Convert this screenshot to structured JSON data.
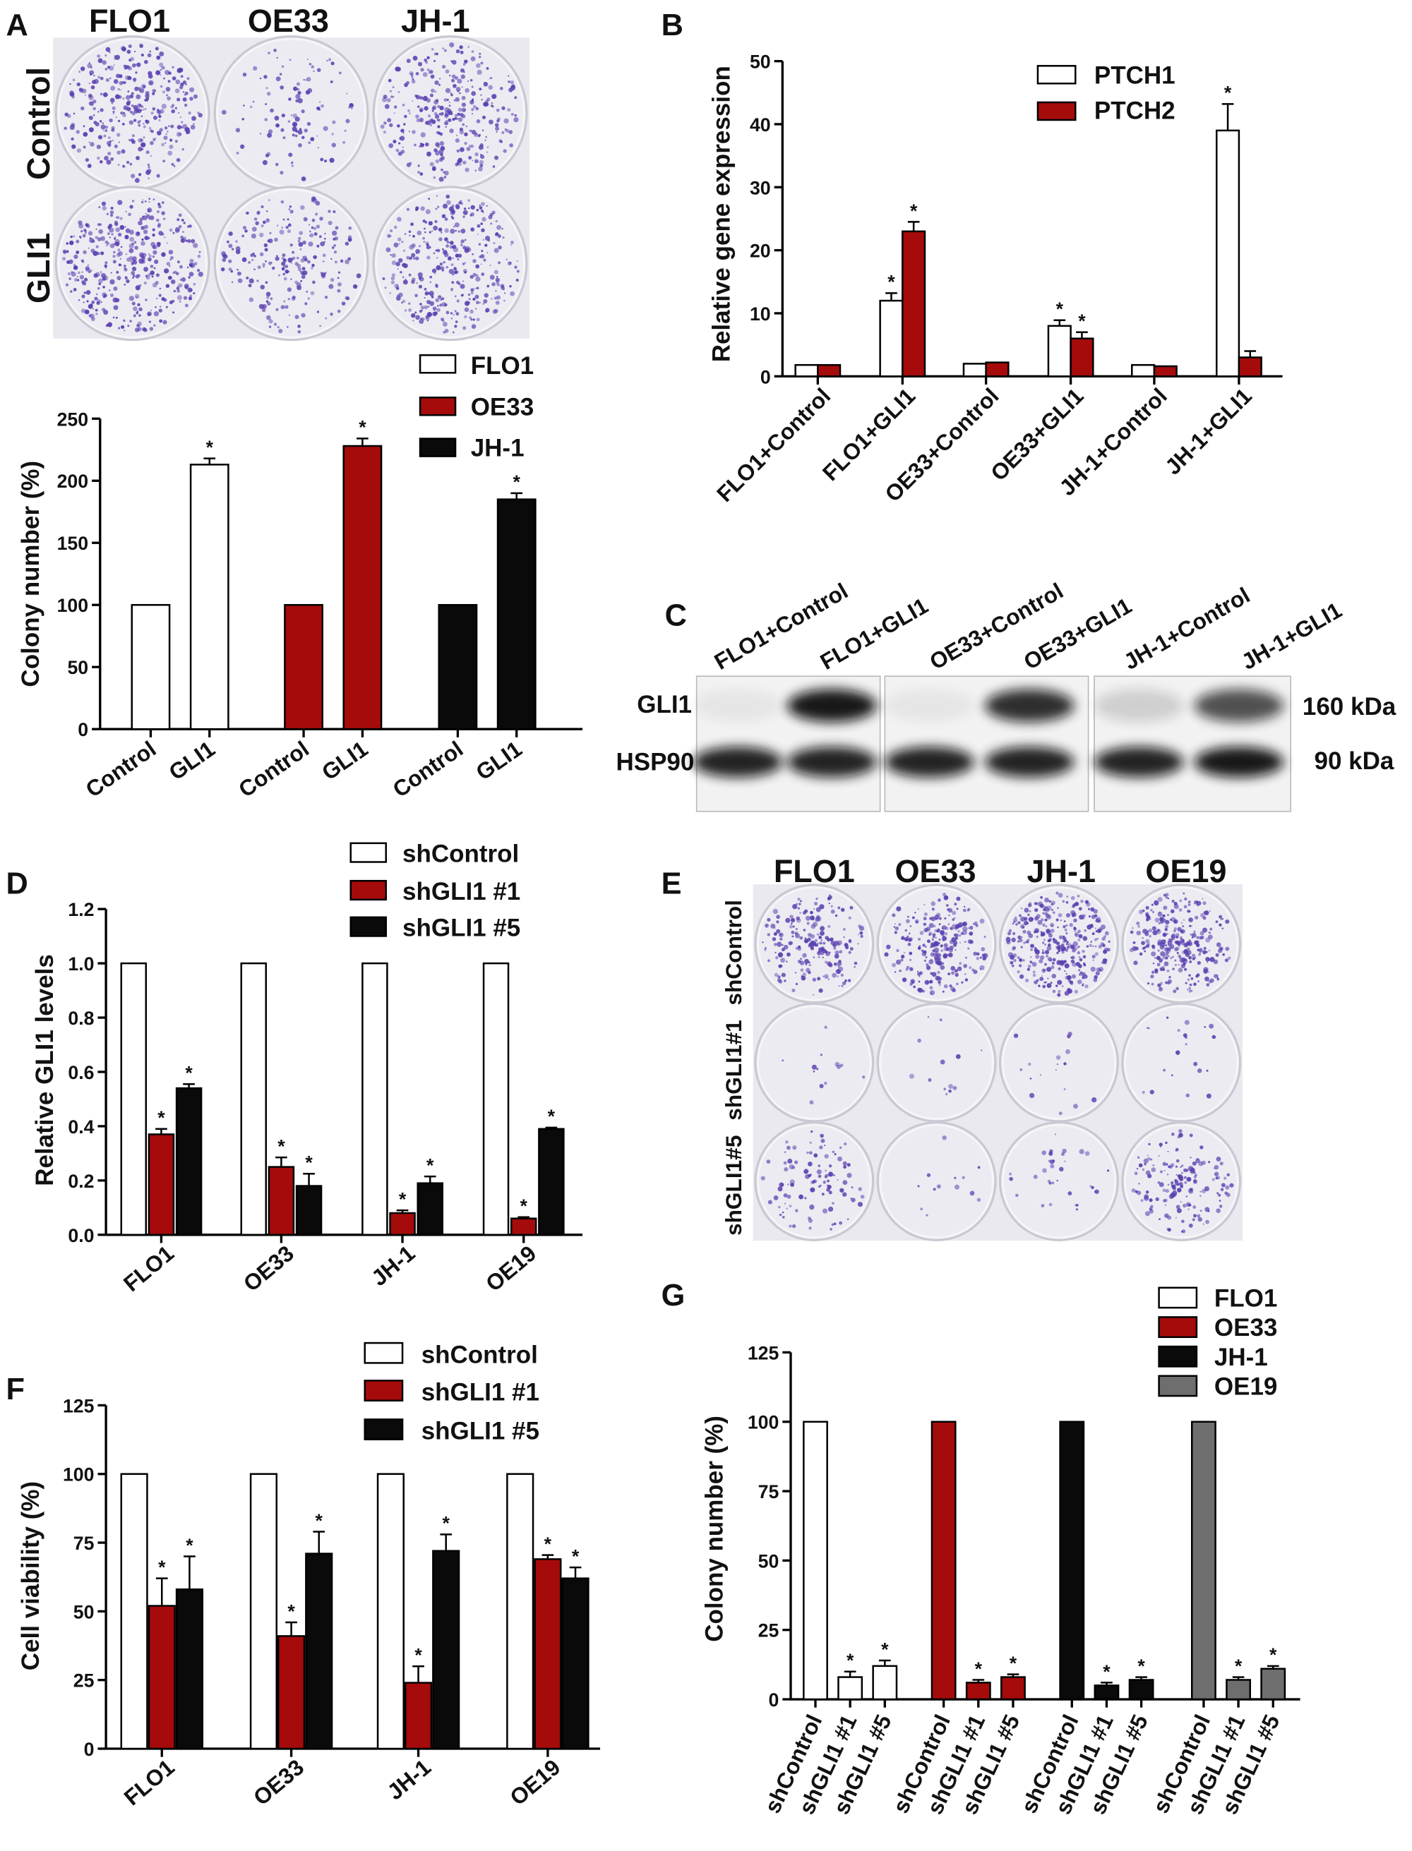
{
  "panels": {
    "A": "A",
    "B": "B",
    "C": "C",
    "D": "D",
    "E": "E",
    "F": "F",
    "G": "G"
  },
  "colors": {
    "white": "#ffffff",
    "red": "#a50b0b",
    "black": "#0a0a0a",
    "gray": "#6e6e6e",
    "stain": "#5a3fb0"
  },
  "photoA": {
    "columns": [
      "FLO1",
      "OE33",
      "JH-1"
    ],
    "rows": [
      "Control",
      "GLI1"
    ],
    "densities": [
      [
        0.8,
        0.25,
        0.75
      ],
      [
        0.95,
        0.55,
        0.85
      ]
    ]
  },
  "photoE": {
    "columns": [
      "FLO1",
      "OE33",
      "JH-1",
      "OE19"
    ],
    "rows": [
      "shControl",
      "shGLI1#1",
      "shGLI1#5"
    ],
    "densities": [
      [
        0.5,
        0.6,
        0.8,
        0.7
      ],
      [
        0.03,
        0.03,
        0.04,
        0.05
      ],
      [
        0.25,
        0.03,
        0.08,
        0.4
      ]
    ]
  },
  "blotC": {
    "lanes": [
      "FLO1+Control",
      "FLO1+GLI1",
      "OE33+Control",
      "OE33+GLI1",
      "JH-1+Control",
      "JH-1+GLI1"
    ],
    "rows": [
      "GLI1",
      "HSP90"
    ],
    "sizes": [
      "160 kDa",
      "90 kDa"
    ],
    "gli1_intensity": [
      0.05,
      0.95,
      0.05,
      0.85,
      0.15,
      0.7
    ],
    "hsp90_intensity": [
      0.9,
      0.9,
      0.9,
      0.9,
      0.9,
      0.95
    ]
  },
  "chart_data": [
    {
      "id": "A",
      "type": "bar",
      "title": "",
      "xlabel": "",
      "ylabel": "Colony number (%)",
      "ylim": [
        0,
        250
      ],
      "yticks": [
        "0",
        "50",
        "100",
        "150",
        "200",
        "250"
      ],
      "legend": "top-right",
      "categories": [
        "Control",
        "GLI1"
      ],
      "series": [
        {
          "name": "FLO1",
          "color": "#ffffff",
          "values": [
            100,
            213
          ],
          "errors": [
            0,
            5
          ],
          "significant": [
            false,
            true
          ]
        },
        {
          "name": "OE33",
          "color": "#a50b0b",
          "values": [
            100,
            228
          ],
          "errors": [
            0,
            6
          ],
          "significant": [
            false,
            true
          ]
        },
        {
          "name": "JH-1",
          "color": "#0a0a0a",
          "values": [
            100,
            185
          ],
          "errors": [
            0,
            5
          ],
          "significant": [
            false,
            true
          ]
        }
      ]
    },
    {
      "id": "B",
      "type": "bar",
      "title": "",
      "xlabel": "",
      "ylabel": "Relative gene expression",
      "ylim": [
        0,
        50
      ],
      "yticks": [
        "0",
        "10",
        "20",
        "30",
        "40",
        "50"
      ],
      "legend": "top-right",
      "categories": [
        "FLO1+Control",
        "FLO1+GLI1",
        "OE33+Control",
        "OE33+GLI1",
        "JH-1+Control",
        "JH-1+GLI1"
      ],
      "series": [
        {
          "name": "PTCH1",
          "color": "#ffffff",
          "values": [
            1.8,
            12,
            2,
            8,
            1.8,
            39
          ],
          "errors": [
            0,
            1.2,
            0,
            0.9,
            0,
            4.2
          ],
          "significant": [
            false,
            true,
            false,
            true,
            false,
            true
          ]
        },
        {
          "name": "PTCH2",
          "color": "#a50b0b",
          "values": [
            1.8,
            23,
            2.2,
            6,
            1.6,
            3
          ],
          "errors": [
            0,
            1.5,
            0,
            1,
            0,
            1
          ],
          "significant": [
            false,
            true,
            false,
            true,
            false,
            false
          ]
        }
      ]
    },
    {
      "id": "D",
      "type": "bar",
      "title": "",
      "xlabel": "",
      "ylabel": "Relative GLI1 levels",
      "ylim": [
        0,
        1.2
      ],
      "yticks": [
        "0.0",
        "0.2",
        "0.4",
        "0.6",
        "0.8",
        "1.0",
        "1.2"
      ],
      "legend": "top",
      "categories": [
        "FLO1",
        "OE33",
        "JH-1",
        "OE19"
      ],
      "series": [
        {
          "name": "shControl",
          "color": "#ffffff",
          "values": [
            1,
            1,
            1,
            1
          ],
          "errors": [
            0,
            0,
            0,
            0
          ],
          "significant": [
            false,
            false,
            false,
            false
          ]
        },
        {
          "name": "shGLI1 #1",
          "color": "#a50b0b",
          "values": [
            0.37,
            0.25,
            0.08,
            0.06
          ],
          "errors": [
            0.02,
            0.035,
            0.01,
            0.005
          ],
          "significant": [
            true,
            true,
            true,
            true
          ]
        },
        {
          "name": "shGLI1 #5",
          "color": "#0a0a0a",
          "values": [
            0.54,
            0.18,
            0.19,
            0.39
          ],
          "errors": [
            0.015,
            0.045,
            0.025,
            0.005
          ],
          "significant": [
            true,
            true,
            true,
            true
          ]
        }
      ]
    },
    {
      "id": "F",
      "type": "bar",
      "title": "",
      "xlabel": "",
      "ylabel": "Cell viability (%)",
      "ylim": [
        0,
        125
      ],
      "yticks": [
        "0",
        "25",
        "50",
        "75",
        "100",
        "125"
      ],
      "legend": "top",
      "categories": [
        "FLO1",
        "OE33",
        "JH-1",
        "OE19"
      ],
      "series": [
        {
          "name": "shControl",
          "color": "#ffffff",
          "values": [
            100,
            100,
            100,
            100
          ],
          "errors": [
            0,
            0,
            0,
            0
          ],
          "significant": [
            false,
            false,
            false,
            false
          ]
        },
        {
          "name": "shGLI1 #1",
          "color": "#a50b0b",
          "values": [
            52,
            41,
            24,
            69
          ],
          "errors": [
            10,
            5,
            6,
            1.5
          ],
          "significant": [
            true,
            true,
            true,
            true
          ]
        },
        {
          "name": "shGLI1 #5",
          "color": "#0a0a0a",
          "values": [
            58,
            71,
            72,
            62
          ],
          "errors": [
            12,
            8,
            6,
            4
          ],
          "significant": [
            true,
            true,
            true,
            true
          ]
        }
      ]
    },
    {
      "id": "G",
      "type": "bar",
      "title": "",
      "xlabel": "",
      "ylabel": "Colony number (%)",
      "ylim": [
        0,
        125
      ],
      "yticks": [
        "0",
        "25",
        "50",
        "75",
        "100",
        "125"
      ],
      "legend": "top-right",
      "categories": [
        "shControl",
        "shGLI1 #1",
        "shGLI1 #5"
      ],
      "series": [
        {
          "name": "FLO1",
          "color": "#ffffff",
          "values": [
            100,
            8,
            12
          ],
          "errors": [
            0,
            2,
            2
          ],
          "significant": [
            false,
            true,
            true
          ]
        },
        {
          "name": "OE33",
          "color": "#a50b0b",
          "values": [
            100,
            6,
            8
          ],
          "errors": [
            0,
            1,
            1
          ],
          "significant": [
            false,
            true,
            true
          ]
        },
        {
          "name": "JH-1",
          "color": "#0a0a0a",
          "values": [
            100,
            5,
            7
          ],
          "errors": [
            0,
            1,
            1
          ],
          "significant": [
            false,
            true,
            true
          ]
        },
        {
          "name": "OE19",
          "color": "#6e6e6e",
          "values": [
            100,
            7,
            11
          ],
          "errors": [
            0,
            1,
            1
          ],
          "significant": [
            false,
            true,
            true
          ]
        }
      ]
    }
  ]
}
